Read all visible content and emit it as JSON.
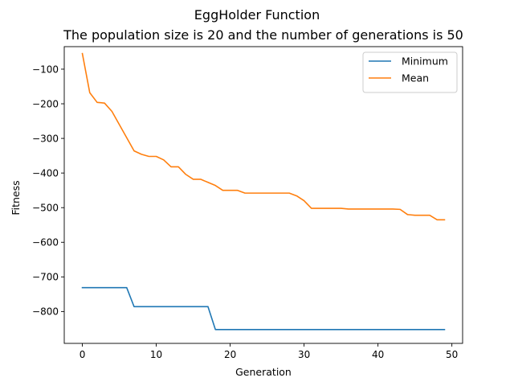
{
  "chart_data": {
    "type": "line",
    "title": "EggHolder Function",
    "subtitle": "The population size is 20 and the number of generations is 50",
    "xlabel": "Generation",
    "ylabel": "Fitness",
    "xlim": [
      -2.45,
      51.45
    ],
    "ylim": [
      -892,
      -35
    ],
    "x_ticks": [
      0,
      10,
      20,
      30,
      40,
      50
    ],
    "y_ticks": [
      -800,
      -700,
      -600,
      -500,
      -400,
      -300,
      -200,
      -100
    ],
    "grid": false,
    "legend_position": "top-right",
    "x": [
      0,
      1,
      2,
      3,
      4,
      5,
      6,
      7,
      8,
      9,
      10,
      11,
      12,
      13,
      14,
      15,
      16,
      17,
      18,
      19,
      20,
      21,
      22,
      23,
      24,
      25,
      26,
      27,
      28,
      29,
      30,
      31,
      32,
      33,
      34,
      35,
      36,
      37,
      38,
      39,
      40,
      41,
      42,
      43,
      44,
      45,
      46,
      47,
      48,
      49
    ],
    "series": [
      {
        "name": "Minimum",
        "color": "#1f77b4",
        "values": [
          -731,
          -731,
          -731,
          -731,
          -731,
          -731,
          -731,
          -786,
          -786,
          -786,
          -786,
          -786,
          -786,
          -786,
          -786,
          -786,
          -786,
          -786,
          -852,
          -852,
          -852,
          -852,
          -852,
          -852,
          -852,
          -852,
          -852,
          -852,
          -852,
          -852,
          -852,
          -852,
          -852,
          -852,
          -852,
          -852,
          -852,
          -852,
          -852,
          -852,
          -852,
          -852,
          -852,
          -852,
          -852,
          -852,
          -852,
          -852,
          -852,
          -852
        ]
      },
      {
        "name": "Mean",
        "color": "#ff7f0e",
        "values": [
          -55,
          -168,
          -196,
          -198,
          -222,
          -260,
          -298,
          -336,
          -346,
          -352,
          -352,
          -362,
          -382,
          -382,
          -404,
          -418,
          -418,
          -427,
          -436,
          -450,
          -450,
          -450,
          -458,
          -458,
          -458,
          -458,
          -458,
          -458,
          -458,
          -466,
          -480,
          -502,
          -502,
          -502,
          -502,
          -502,
          -504,
          -504,
          -504,
          -504,
          -504,
          -504,
          -504,
          -505,
          -520,
          -522,
          -522,
          -522,
          -535,
          -535
        ]
      }
    ]
  }
}
